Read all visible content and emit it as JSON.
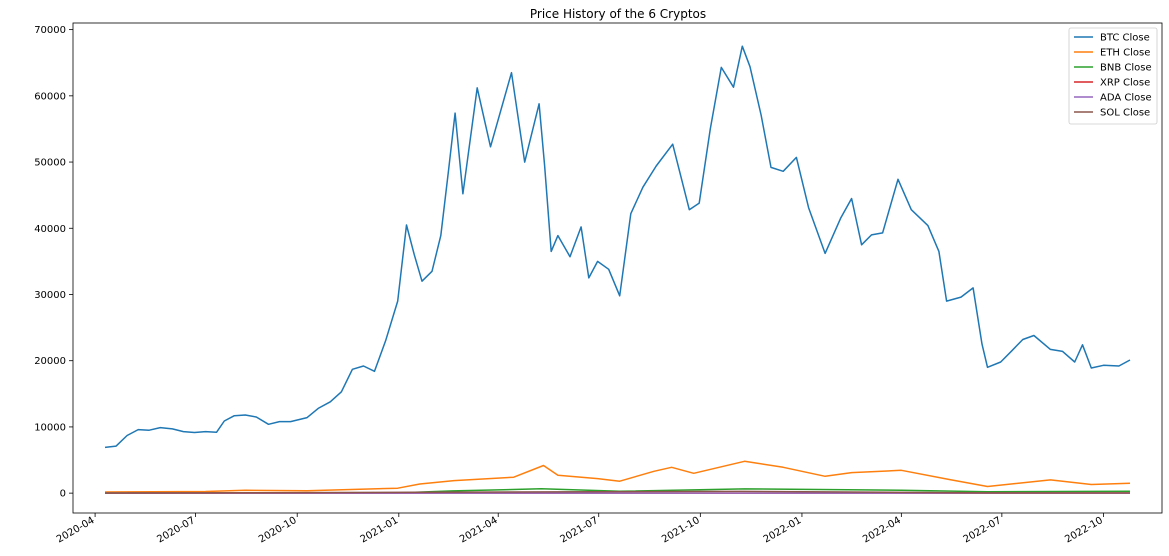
{
  "chart_data": {
    "type": "line",
    "title": "Price History of the 6 Cryptos",
    "xlabel": "",
    "ylabel": "",
    "x_range": [
      "2020-03-12",
      "2022-11-23"
    ],
    "ylim": [
      -3000,
      71000
    ],
    "y_ticks": [
      0,
      10000,
      20000,
      30000,
      40000,
      50000,
      60000,
      70000
    ],
    "x_ticks": [
      "2020-04",
      "2020-07",
      "2020-10",
      "2021-01",
      "2021-04",
      "2021-07",
      "2021-10",
      "2022-01",
      "2022-04",
      "2022-07",
      "2022-10"
    ],
    "legend_position": "top-right",
    "grid": false,
    "series": [
      {
        "name": "BTC Close",
        "color": "#1f77b4",
        "x": [
          "2020-04-10",
          "2020-04-20",
          "2020-04-30",
          "2020-05-10",
          "2020-05-20",
          "2020-05-30",
          "2020-06-10",
          "2020-06-20",
          "2020-06-30",
          "2020-07-10",
          "2020-07-20",
          "2020-07-27",
          "2020-08-05",
          "2020-08-15",
          "2020-08-25",
          "2020-09-05",
          "2020-09-15",
          "2020-09-25",
          "2020-10-10",
          "2020-10-20",
          "2020-10-31",
          "2020-11-10",
          "2020-11-20",
          "2020-11-30",
          "2020-12-10",
          "2020-12-20",
          "2020-12-31",
          "2021-01-08",
          "2021-01-15",
          "2021-01-22",
          "2021-01-31",
          "2021-02-08",
          "2021-02-15",
          "2021-02-21",
          "2021-02-28",
          "2021-03-13",
          "2021-03-25",
          "2021-04-13",
          "2021-04-25",
          "2021-05-08",
          "2021-05-13",
          "2021-05-19",
          "2021-05-25",
          "2021-06-05",
          "2021-06-15",
          "2021-06-22",
          "2021-06-30",
          "2021-07-10",
          "2021-07-20",
          "2021-07-30",
          "2021-08-10",
          "2021-08-22",
          "2021-09-06",
          "2021-09-21",
          "2021-09-30",
          "2021-10-10",
          "2021-10-20",
          "2021-10-31",
          "2021-11-08",
          "2021-11-15",
          "2021-11-25",
          "2021-12-04",
          "2021-12-15",
          "2021-12-27",
          "2022-01-07",
          "2022-01-22",
          "2022-02-05",
          "2022-02-15",
          "2022-02-24",
          "2022-03-05",
          "2022-03-15",
          "2022-03-29",
          "2022-04-10",
          "2022-04-25",
          "2022-05-05",
          "2022-05-12",
          "2022-05-25",
          "2022-06-05",
          "2022-06-13",
          "2022-06-18",
          "2022-06-30",
          "2022-07-10",
          "2022-07-20",
          "2022-07-30",
          "2022-08-14",
          "2022-08-25",
          "2022-09-05",
          "2022-09-12",
          "2022-09-20",
          "2022-10-01",
          "2022-10-15",
          "2022-10-25"
        ],
        "values": [
          6900,
          7100,
          8700,
          9600,
          9500,
          9900,
          9700,
          9300,
          9150,
          9300,
          9200,
          10900,
          11700,
          11800,
          11500,
          10400,
          10800,
          10800,
          11400,
          12800,
          13800,
          15300,
          18700,
          19200,
          18400,
          23000,
          29000,
          40500,
          36000,
          32000,
          33500,
          38900,
          48700,
          57400,
          45200,
          61200,
          52300,
          63500,
          50000,
          58800,
          49500,
          36500,
          38900,
          35700,
          40200,
          32500,
          35000,
          33800,
          29800,
          42200,
          46200,
          49400,
          52700,
          42800,
          43800,
          55000,
          64300,
          61300,
          67500,
          64400,
          57100,
          49200,
          48600,
          50700,
          43100,
          36200,
          41500,
          44500,
          37500,
          39000,
          39300,
          47400,
          42800,
          40400,
          36500,
          29000,
          29600,
          31000,
          22500,
          19000,
          19800,
          21500,
          23200,
          23800,
          21700,
          21400,
          19800,
          22400,
          18900,
          19300,
          19200,
          20100
        ]
      },
      {
        "name": "ETH Close",
        "color": "#ff7f0e",
        "x": [
          "2020-04-10",
          "2020-07-10",
          "2020-08-15",
          "2020-10-10",
          "2020-12-31",
          "2021-01-20",
          "2021-02-20",
          "2021-04-15",
          "2021-05-12",
          "2021-05-25",
          "2021-06-30",
          "2021-07-20",
          "2021-08-20",
          "2021-09-05",
          "2021-09-25",
          "2021-11-10",
          "2021-12-15",
          "2022-01-22",
          "2022-02-15",
          "2022-04-01",
          "2022-05-15",
          "2022-06-18",
          "2022-08-14",
          "2022-09-20",
          "2022-10-25"
        ],
        "values": [
          170,
          240,
          430,
          370,
          740,
          1380,
          1900,
          2400,
          4170,
          2700,
          2200,
          1800,
          3300,
          3900,
          3000,
          4810,
          3900,
          2550,
          3100,
          3450,
          2050,
          1000,
          2000,
          1300,
          1500
        ]
      },
      {
        "name": "BNB Close",
        "color": "#2ca02c",
        "x": [
          "2020-04-10",
          "2020-12-31",
          "2021-02-19",
          "2021-05-10",
          "2021-07-20",
          "2021-11-10",
          "2022-04-01",
          "2022-06-18",
          "2022-10-25"
        ],
        "values": [
          15,
          38,
          330,
          660,
          280,
          640,
          440,
          220,
          290
        ]
      },
      {
        "name": "XRP Close",
        "color": "#d62728",
        "x": [
          "2020-04-10",
          "2021-04-14",
          "2021-07-20",
          "2022-10-25"
        ],
        "values": [
          0.2,
          1.8,
          0.55,
          0.45
        ]
      },
      {
        "name": "ADA Close",
        "color": "#9467bd",
        "x": [
          "2020-04-10",
          "2021-09-02",
          "2022-10-25"
        ],
        "values": [
          0.03,
          2.9,
          0.36
        ]
      },
      {
        "name": "SOL Close",
        "color": "#8c564b",
        "x": [
          "2020-04-10",
          "2021-11-06",
          "2022-06-18",
          "2022-10-25"
        ],
        "values": [
          0.8,
          258,
          30,
          30
        ]
      }
    ]
  }
}
